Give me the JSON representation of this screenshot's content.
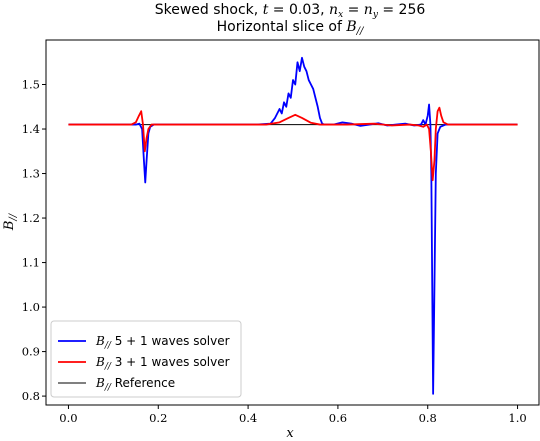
{
  "chart_data": {
    "type": "line",
    "title": "Skewed shock, t = 0.03, nₓ = nᵧ = 256",
    "subtitle": "Horizontal slice of B//",
    "xlabel": "x",
    "ylabel": "B//",
    "xlim": [
      -0.05,
      1.05
    ],
    "ylim": [
      0.78,
      1.6
    ],
    "xticks": [
      "0.0",
      "0.2",
      "0.4",
      "0.6",
      "0.8",
      "1.0"
    ],
    "yticks": [
      "0.8",
      "0.9",
      "1.0",
      "1.1",
      "1.2",
      "1.3",
      "1.4",
      "1.5"
    ],
    "grid": false,
    "legend_position": "lower-left",
    "series": [
      {
        "name": "B// 5 + 1 waves solver",
        "color": "#0000ff",
        "points": [
          [
            0.0,
            1.41
          ],
          [
            0.15,
            1.41
          ],
          [
            0.158,
            1.412
          ],
          [
            0.164,
            1.4
          ],
          [
            0.168,
            1.33
          ],
          [
            0.171,
            1.28
          ],
          [
            0.174,
            1.33
          ],
          [
            0.178,
            1.39
          ],
          [
            0.182,
            1.405
          ],
          [
            0.19,
            1.41
          ],
          [
            0.42,
            1.41
          ],
          [
            0.45,
            1.412
          ],
          [
            0.46,
            1.425
          ],
          [
            0.47,
            1.445
          ],
          [
            0.475,
            1.435
          ],
          [
            0.48,
            1.46
          ],
          [
            0.485,
            1.45
          ],
          [
            0.49,
            1.48
          ],
          [
            0.495,
            1.47
          ],
          [
            0.5,
            1.51
          ],
          [
            0.505,
            1.5
          ],
          [
            0.51,
            1.55
          ],
          [
            0.515,
            1.53
          ],
          [
            0.52,
            1.56
          ],
          [
            0.525,
            1.54
          ],
          [
            0.53,
            1.53
          ],
          [
            0.535,
            1.51
          ],
          [
            0.54,
            1.5
          ],
          [
            0.545,
            1.49
          ],
          [
            0.55,
            1.47
          ],
          [
            0.555,
            1.45
          ],
          [
            0.56,
            1.425
          ],
          [
            0.565,
            1.412
          ],
          [
            0.57,
            1.41
          ],
          [
            0.59,
            1.41
          ],
          [
            0.61,
            1.415
          ],
          [
            0.63,
            1.412
          ],
          [
            0.65,
            1.407
          ],
          [
            0.67,
            1.41
          ],
          [
            0.69,
            1.413
          ],
          [
            0.71,
            1.408
          ],
          [
            0.73,
            1.41
          ],
          [
            0.75,
            1.412
          ],
          [
            0.77,
            1.408
          ],
          [
            0.785,
            1.41
          ],
          [
            0.79,
            1.42
          ],
          [
            0.795,
            1.41
          ],
          [
            0.8,
            1.43
          ],
          [
            0.803,
            1.455
          ],
          [
            0.806,
            1.41
          ],
          [
            0.808,
            1.3
          ],
          [
            0.81,
            1.05
          ],
          [
            0.812,
            0.805
          ],
          [
            0.815,
            1.05
          ],
          [
            0.818,
            1.3
          ],
          [
            0.822,
            1.39
          ],
          [
            0.828,
            1.405
          ],
          [
            0.84,
            1.41
          ],
          [
            1.0,
            1.41
          ]
        ]
      },
      {
        "name": "B// 3 + 1 waves solver",
        "color": "#ff0000",
        "points": [
          [
            0.0,
            1.41
          ],
          [
            0.14,
            1.41
          ],
          [
            0.15,
            1.415
          ],
          [
            0.157,
            1.43
          ],
          [
            0.162,
            1.44
          ],
          [
            0.166,
            1.41
          ],
          [
            0.17,
            1.35
          ],
          [
            0.174,
            1.38
          ],
          [
            0.178,
            1.4
          ],
          [
            0.185,
            1.41
          ],
          [
            0.44,
            1.41
          ],
          [
            0.47,
            1.415
          ],
          [
            0.49,
            1.425
          ],
          [
            0.505,
            1.432
          ],
          [
            0.52,
            1.425
          ],
          [
            0.54,
            1.414
          ],
          [
            0.56,
            1.41
          ],
          [
            0.62,
            1.41
          ],
          [
            0.68,
            1.412
          ],
          [
            0.72,
            1.408
          ],
          [
            0.76,
            1.41
          ],
          [
            0.78,
            1.408
          ],
          [
            0.79,
            1.405
          ],
          [
            0.798,
            1.41
          ],
          [
            0.803,
            1.4
          ],
          [
            0.807,
            1.35
          ],
          [
            0.811,
            1.285
          ],
          [
            0.815,
            1.33
          ],
          [
            0.818,
            1.4
          ],
          [
            0.822,
            1.44
          ],
          [
            0.826,
            1.448
          ],
          [
            0.83,
            1.43
          ],
          [
            0.835,
            1.415
          ],
          [
            0.845,
            1.41
          ],
          [
            1.0,
            1.41
          ]
        ]
      },
      {
        "name": "B// Reference",
        "color": "#000000",
        "points": [
          [
            0.0,
            1.41
          ],
          [
            1.0,
            1.41
          ]
        ]
      }
    ]
  },
  "legend_labels": [
    "5 + 1 waves solver",
    "3 + 1 waves solver",
    "Reference"
  ]
}
